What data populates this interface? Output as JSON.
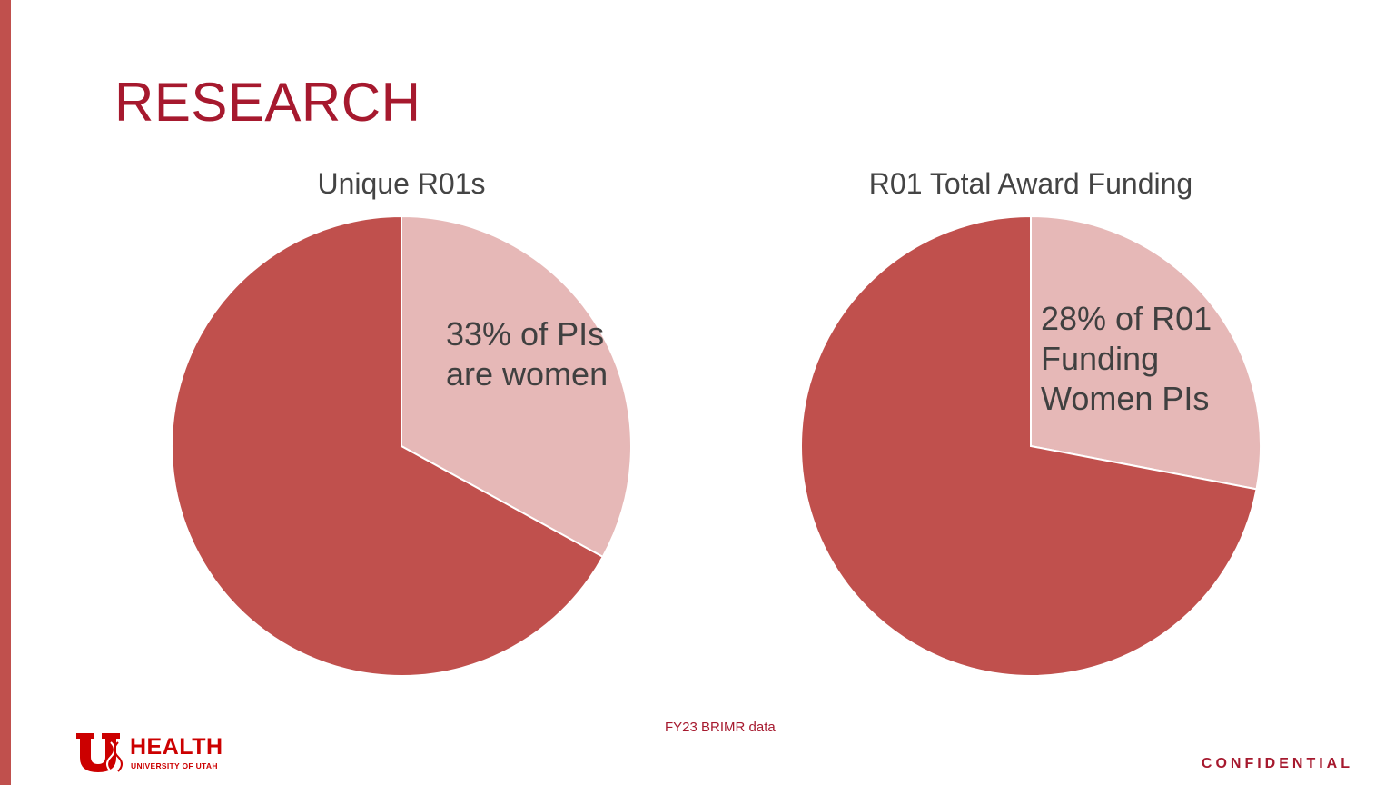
{
  "slide": {
    "title": "RESEARCH",
    "source_note": "FY23 BRIMR data",
    "confidential_label": "CONFIDENTIAL",
    "logo": {
      "main": "HEALTH",
      "sub": "UNIVERSITY OF UTAH"
    }
  },
  "colors": {
    "accent": "#a6192e",
    "bar": "#c0504d",
    "women": "#e6b8b7",
    "men": "#c0504d"
  },
  "chart_data": [
    {
      "type": "pie",
      "title": "Unique R01s",
      "slices": [
        {
          "value": 33,
          "color": "#e6b8b7",
          "label": "33% of PIs are women"
        },
        {
          "value": 67,
          "color": "#c0504d"
        }
      ]
    },
    {
      "type": "pie",
      "title": "R01 Total Award Funding",
      "slices": [
        {
          "value": 28,
          "color": "#e6b8b7",
          "label": "28% of R01 Funding Women PIs"
        },
        {
          "value": 72,
          "color": "#c0504d"
        }
      ]
    }
  ]
}
